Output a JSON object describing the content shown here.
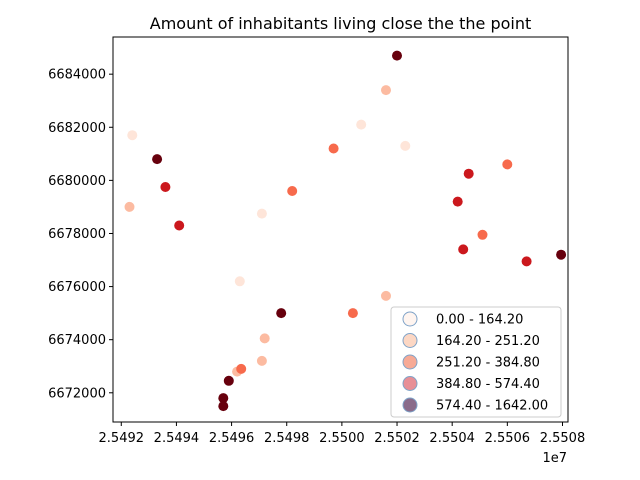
{
  "chart_data": {
    "type": "scatter",
    "title": "Amount of inhabitants living close the the point",
    "xlabel": "",
    "ylabel": "",
    "x_offset_label": "1e7",
    "xlim": [
      25491700,
      25508200
    ],
    "ylim": [
      6670900,
      6685400
    ],
    "x_ticks": [
      25492000,
      25494000,
      25496000,
      25498000,
      25500000,
      25502000,
      25504000,
      25506000,
      25508000
    ],
    "x_tick_labels": [
      "2.5492",
      "2.5494",
      "2.5496",
      "2.5498",
      "2.5500",
      "2.5502",
      "2.5504",
      "2.5506",
      "2.5508"
    ],
    "y_ticks": [
      6672000,
      6674000,
      6676000,
      6678000,
      6680000,
      6682000,
      6684000
    ],
    "y_tick_labels": [
      "6672000",
      "6674000",
      "6676000",
      "6678000",
      "6680000",
      "6682000",
      "6684000"
    ],
    "grid": false,
    "legend_position": "lower-right",
    "classes": [
      {
        "label": "0.00 - 164.20",
        "color": "#fee5d9"
      },
      {
        "label": "164.20 - 251.20",
        "color": "#fcbba1"
      },
      {
        "label": "251.20 - 384.80",
        "color": "#f76a4c"
      },
      {
        "label": "384.80 - 574.40",
        "color": "#cb181d"
      },
      {
        "label": "574.40 - 1642.00",
        "color": "#67000d"
      }
    ],
    "legend_marker_colors": [
      "#fff5f0",
      "#fcd7c4",
      "#f7aa96",
      "#e88f96",
      "#8a6b8a"
    ],
    "points": [
      {
        "x": 25502000,
        "y": 6684700,
        "class": 4
      },
      {
        "x": 25501600,
        "y": 6683400,
        "class": 1
      },
      {
        "x": 25492400,
        "y": 6681700,
        "class": 0
      },
      {
        "x": 25500700,
        "y": 6682100,
        "class": 0
      },
      {
        "x": 25502300,
        "y": 6681300,
        "class": 0
      },
      {
        "x": 25499700,
        "y": 6681200,
        "class": 2
      },
      {
        "x": 25493300,
        "y": 6680800,
        "class": 4
      },
      {
        "x": 25506000,
        "y": 6680600,
        "class": 2
      },
      {
        "x": 25504600,
        "y": 6680250,
        "class": 3
      },
      {
        "x": 25493600,
        "y": 6679750,
        "class": 3
      },
      {
        "x": 25498200,
        "y": 6679600,
        "class": 2
      },
      {
        "x": 25504200,
        "y": 6679200,
        "class": 3
      },
      {
        "x": 25492300,
        "y": 6679000,
        "class": 1
      },
      {
        "x": 25497100,
        "y": 6678750,
        "class": 0
      },
      {
        "x": 25494100,
        "y": 6678300,
        "class": 3
      },
      {
        "x": 25505100,
        "y": 6677950,
        "class": 2
      },
      {
        "x": 25504400,
        "y": 6677400,
        "class": 3
      },
      {
        "x": 25507950,
        "y": 6677200,
        "class": 4
      },
      {
        "x": 25506700,
        "y": 6676950,
        "class": 3
      },
      {
        "x": 25496300,
        "y": 6676200,
        "class": 0
      },
      {
        "x": 25501600,
        "y": 6675650,
        "class": 1
      },
      {
        "x": 25497800,
        "y": 6675000,
        "class": 4
      },
      {
        "x": 25500400,
        "y": 6675000,
        "class": 2
      },
      {
        "x": 25497200,
        "y": 6674050,
        "class": 1
      },
      {
        "x": 25497100,
        "y": 6673200,
        "class": 1
      },
      {
        "x": 25496200,
        "y": 6672800,
        "class": 1
      },
      {
        "x": 25496350,
        "y": 6672900,
        "class": 2
      },
      {
        "x": 25495900,
        "y": 6672450,
        "class": 4
      },
      {
        "x": 25495700,
        "y": 6671800,
        "class": 4
      },
      {
        "x": 25495700,
        "y": 6671500,
        "class": 4
      }
    ]
  }
}
